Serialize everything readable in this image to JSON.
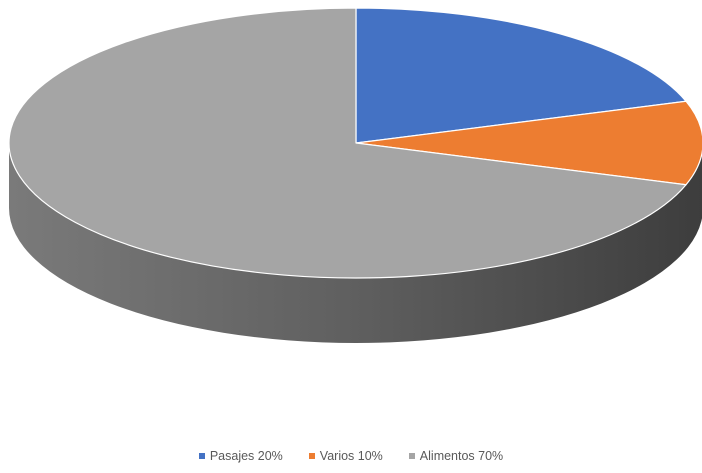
{
  "chart_data": {
    "type": "pie",
    "style": "3d",
    "categories": [
      "Pasajes",
      "Varios",
      "Alimentos"
    ],
    "values": [
      20,
      10,
      70
    ],
    "colors": [
      "#4472C4",
      "#ED7D31",
      "#A5A5A5"
    ],
    "legend": {
      "placement": "bottom",
      "entries": [
        "Pasajes 20%",
        "Varios 10%",
        "Alimentos 70%"
      ]
    }
  }
}
